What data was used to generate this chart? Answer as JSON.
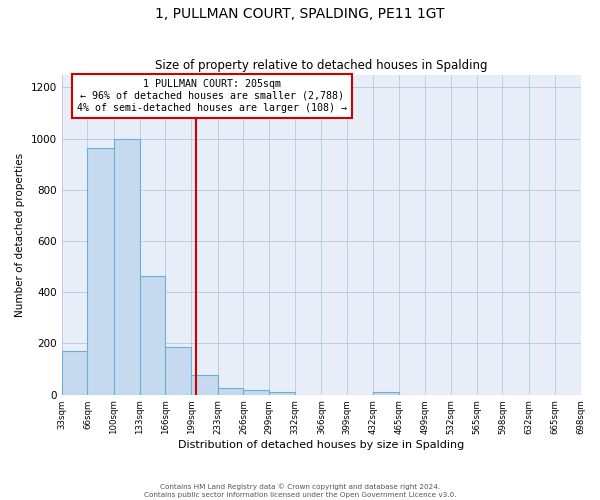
{
  "title": "1, PULLMAN COURT, SPALDING, PE11 1GT",
  "subtitle": "Size of property relative to detached houses in Spalding",
  "xlabel": "Distribution of detached houses by size in Spalding",
  "ylabel": "Number of detached properties",
  "bar_edges": [
    33,
    66,
    100,
    133,
    166,
    199,
    233,
    266,
    299,
    332,
    366,
    399,
    432,
    465,
    499,
    532,
    565,
    598,
    632,
    665,
    698
  ],
  "bar_heights": [
    170,
    965,
    1000,
    465,
    185,
    75,
    25,
    18,
    10,
    0,
    0,
    0,
    10,
    0,
    0,
    0,
    0,
    0,
    0,
    0
  ],
  "bar_color": "#c5d9ef",
  "bar_edge_color": "#6baed6",
  "property_line_x": 205,
  "property_line_color": "#cc0000",
  "annotation_text_line1": "1 PULLMAN COURT: 205sqm",
  "annotation_text_line2": "← 96% of detached houses are smaller (2,788)",
  "annotation_text_line3": "4% of semi-detached houses are larger (108) →",
  "annotation_box_color": "#cc0000",
  "ylim": [
    0,
    1250
  ],
  "yticks": [
    0,
    200,
    400,
    600,
    800,
    1000,
    1200
  ],
  "tick_labels": [
    "33sqm",
    "66sqm",
    "100sqm",
    "133sqm",
    "166sqm",
    "199sqm",
    "233sqm",
    "266sqm",
    "299sqm",
    "332sqm",
    "366sqm",
    "399sqm",
    "432sqm",
    "465sqm",
    "499sqm",
    "532sqm",
    "565sqm",
    "598sqm",
    "632sqm",
    "665sqm",
    "698sqm"
  ],
  "footer_line1": "Contains HM Land Registry data © Crown copyright and database right 2024.",
  "footer_line2": "Contains public sector information licensed under the Open Government Licence v3.0.",
  "background_color": "#ffffff",
  "plot_bg_color": "#e8eef7",
  "grid_color": "#b8c8dc"
}
